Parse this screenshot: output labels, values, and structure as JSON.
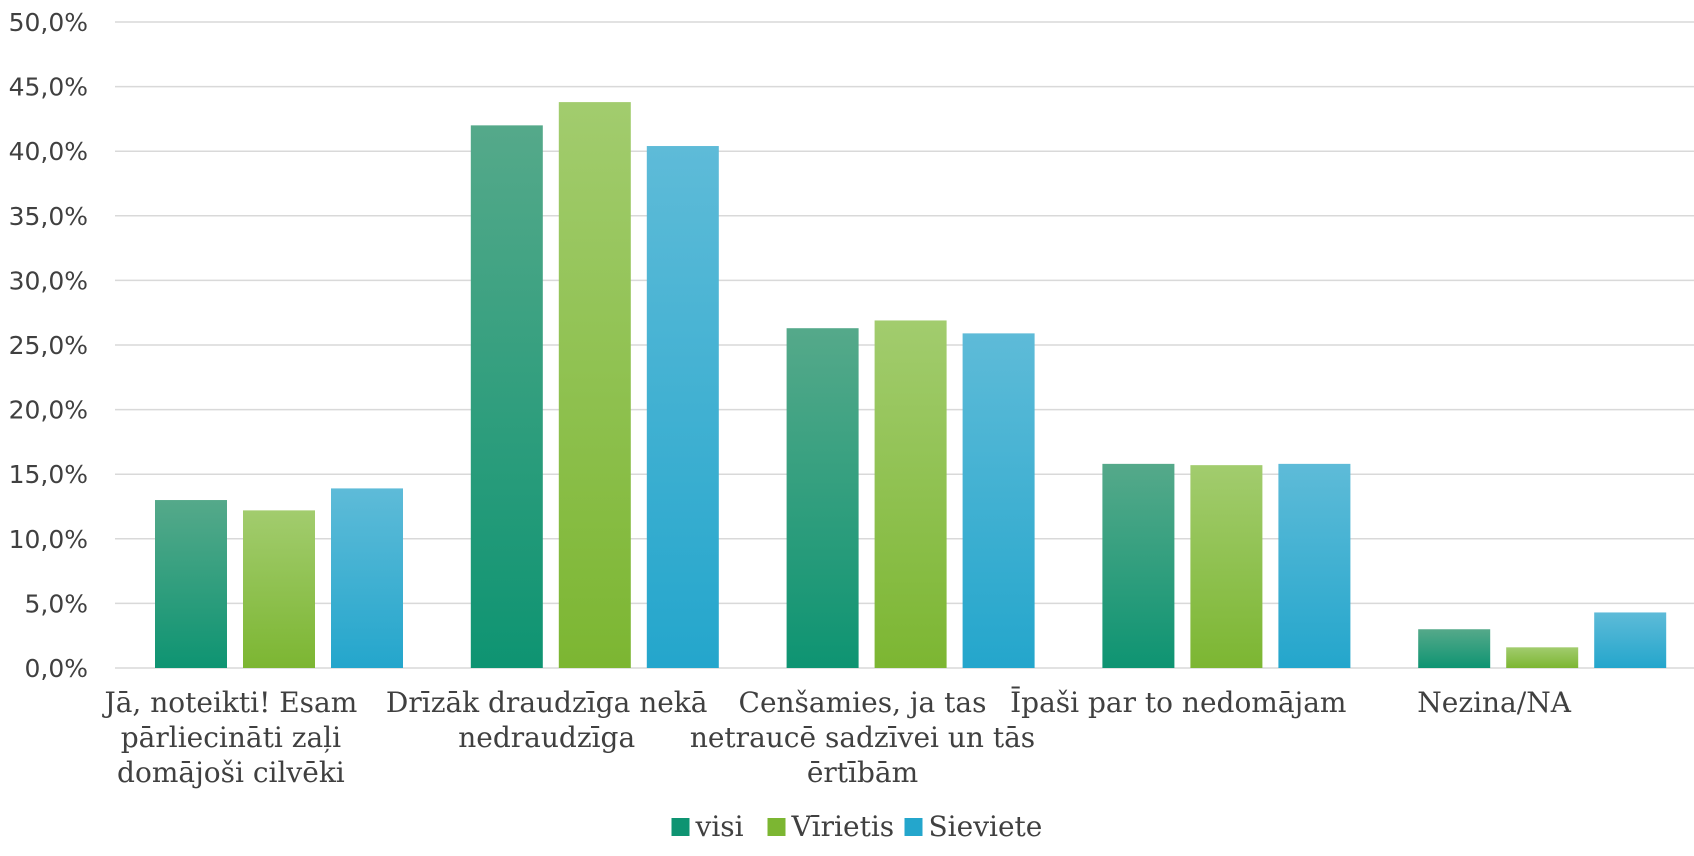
{
  "chart_data": {
    "type": "bar",
    "categories": [
      [
        "Jā, noteikti! Esam",
        "pārliecināti zaļi",
        "domājoši cilvēki"
      ],
      [
        "Drīzāk draudzīga nekā",
        "nedraudzīga"
      ],
      [
        "Cenšamies, ja tas",
        "netraucē sadzīvei un tās",
        "ērtībām"
      ],
      [
        "Īpaši par to nedomājam"
      ],
      [
        "Nezina/NA"
      ]
    ],
    "series": [
      {
        "name": "visi",
        "values": [
          13.0,
          42.0,
          26.3,
          15.8,
          3.0
        ],
        "color_top": "#55a98a",
        "color_bottom": "#0e9472"
      },
      {
        "name": "Vīrietis",
        "values": [
          12.2,
          43.8,
          26.9,
          15.7,
          1.6
        ],
        "color_top": "#a2cc6e",
        "color_bottom": "#7cb632"
      },
      {
        "name": "Sieviete",
        "values": [
          13.9,
          40.4,
          25.9,
          15.8,
          4.3
        ],
        "color_top": "#5ebbd8",
        "color_bottom": "#24a6cc"
      }
    ],
    "ylim": [
      0,
      50
    ],
    "yticks": [
      "0,0%",
      "5,0%",
      "10,0%",
      "15,0%",
      "20,0%",
      "25,0%",
      "30,0%",
      "35,0%",
      "40,0%",
      "45,0%",
      "50,0%"
    ],
    "grid": true,
    "legend_position": "bottom"
  },
  "colors": {
    "gridline": "#d9d9d9",
    "text": "#404040"
  }
}
